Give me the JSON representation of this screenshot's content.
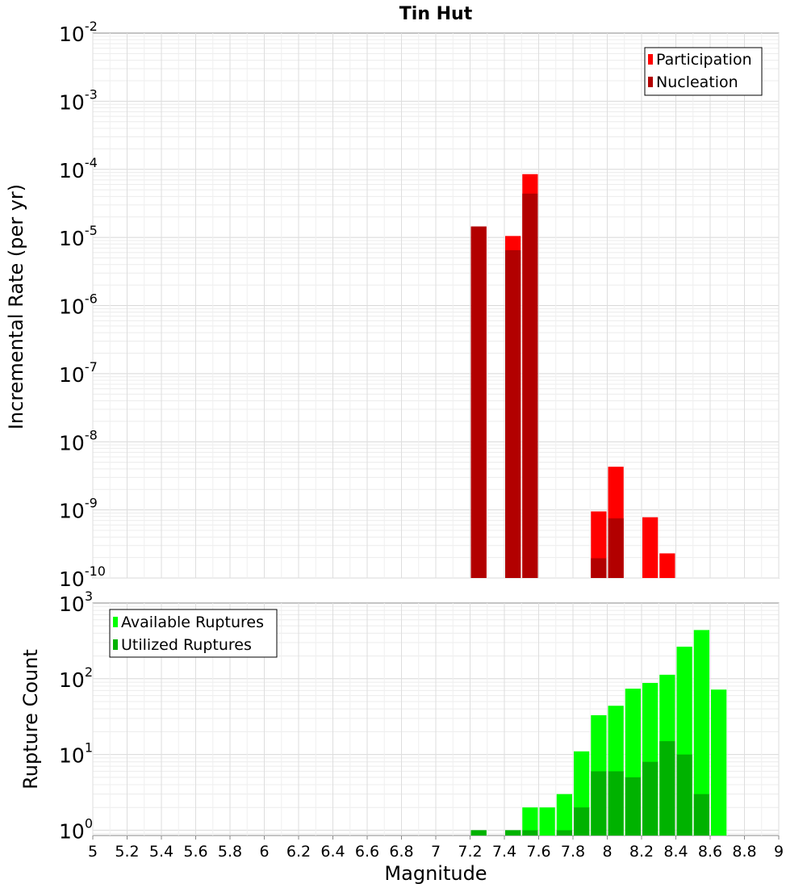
{
  "chart_data": [
    {
      "type": "bar",
      "title": "Tin Hut",
      "xlabel": "",
      "ylabel": "Incremental Rate (per yr)",
      "yscale": "log",
      "ylim_exp": [
        -10,
        -2
      ],
      "xlim": [
        5,
        9
      ],
      "bin_width": 0.1,
      "grid": true,
      "legend": "top-right",
      "series": [
        {
          "name": "Participation",
          "color": "#ff0000",
          "points": [
            {
              "x": 7.25,
              "y": 1.45e-05
            },
            {
              "x": 7.45,
              "y": 1.05e-05
            },
            {
              "x": 7.55,
              "y": 8.5e-05
            },
            {
              "x": 7.95,
              "y": 9.5e-10
            },
            {
              "x": 8.05,
              "y": 4.3e-09
            },
            {
              "x": 8.25,
              "y": 7.8e-10
            },
            {
              "x": 8.35,
              "y": 2.3e-10
            }
          ]
        },
        {
          "name": "Nucleation",
          "color": "#b20000",
          "points": [
            {
              "x": 7.25,
              "y": 1.45e-05
            },
            {
              "x": 7.45,
              "y": 6.5e-06
            },
            {
              "x": 7.55,
              "y": 4.4e-05
            },
            {
              "x": 7.95,
              "y": 1.95e-10
            },
            {
              "x": 8.05,
              "y": 7.5e-10
            }
          ]
        }
      ]
    },
    {
      "type": "bar",
      "title": "",
      "xlabel": "Magnitude",
      "ylabel": "Rupture Count",
      "yscale": "log",
      "ylim_exp": [
        -0.07,
        3
      ],
      "xlim": [
        5,
        9
      ],
      "bin_width": 0.1,
      "grid": true,
      "legend": "top-left",
      "xticks": [
        "5",
        "5.2",
        "5.4",
        "5.6",
        "5.8",
        "6",
        "6.2",
        "6.4",
        "6.6",
        "6.8",
        "7",
        "7.2",
        "7.4",
        "7.6",
        "7.8",
        "8",
        "8.2",
        "8.4",
        "8.6",
        "8.8",
        "9"
      ],
      "series": [
        {
          "name": "Available Ruptures",
          "color": "#00ff00",
          "points": [
            {
              "x": 7.25,
              "y": 1
            },
            {
              "x": 7.45,
              "y": 1
            },
            {
              "x": 7.55,
              "y": 2
            },
            {
              "x": 7.65,
              "y": 2
            },
            {
              "x": 7.75,
              "y": 3
            },
            {
              "x": 7.85,
              "y": 11
            },
            {
              "x": 7.95,
              "y": 33
            },
            {
              "x": 8.05,
              "y": 44
            },
            {
              "x": 8.15,
              "y": 74
            },
            {
              "x": 8.25,
              "y": 88
            },
            {
              "x": 8.35,
              "y": 113
            },
            {
              "x": 8.45,
              "y": 265
            },
            {
              "x": 8.55,
              "y": 440
            },
            {
              "x": 8.65,
              "y": 72
            }
          ]
        },
        {
          "name": "Utilized Ruptures",
          "color": "#00b200",
          "points": [
            {
              "x": 7.25,
              "y": 1
            },
            {
              "x": 7.45,
              "y": 1
            },
            {
              "x": 7.55,
              "y": 1
            },
            {
              "x": 7.75,
              "y": 1
            },
            {
              "x": 7.85,
              "y": 2
            },
            {
              "x": 7.95,
              "y": 6
            },
            {
              "x": 8.05,
              "y": 6
            },
            {
              "x": 8.15,
              "y": 5
            },
            {
              "x": 8.25,
              "y": 8
            },
            {
              "x": 8.35,
              "y": 15
            },
            {
              "x": 8.45,
              "y": 10
            },
            {
              "x": 8.55,
              "y": 3
            }
          ]
        }
      ]
    }
  ]
}
